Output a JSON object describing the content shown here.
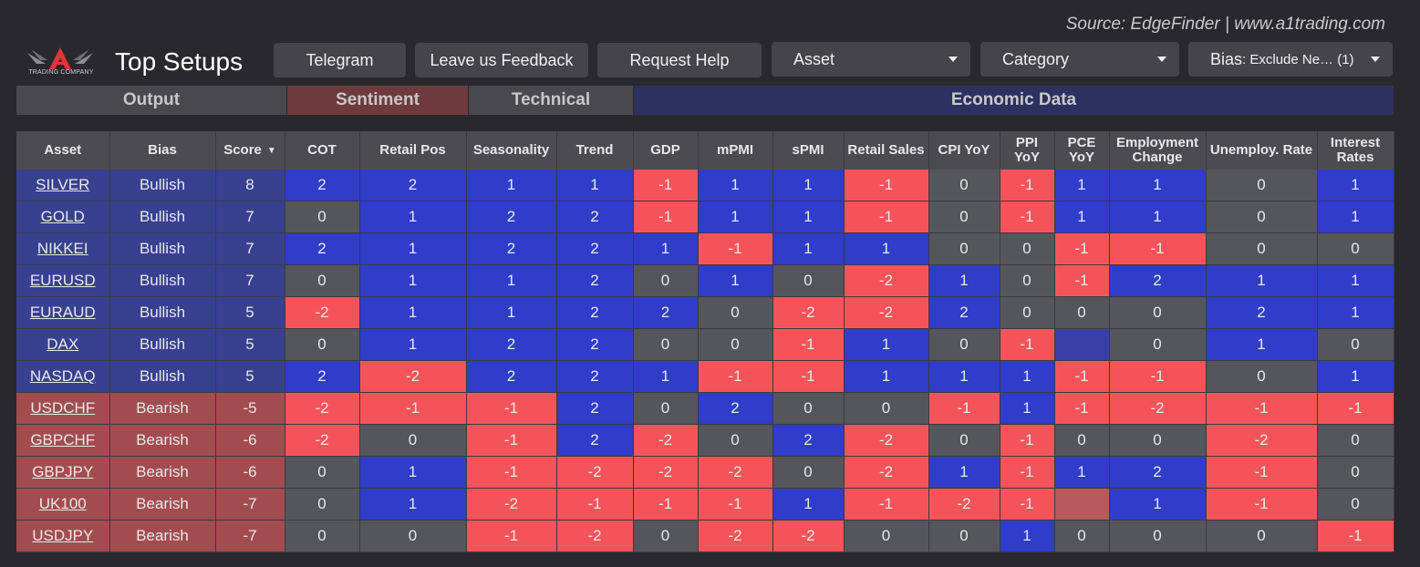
{
  "source": "Source: EdgeFinder | www.a1trading.com",
  "logo_text": "TRADING COMPANY",
  "title": "Top Setups",
  "buttons": {
    "telegram": "Telegram",
    "feedback": "Leave us Feedback",
    "help": "Request Help"
  },
  "filters": {
    "asset": "Asset",
    "category": "Category",
    "bias_label": "Bias",
    "bias_value": ": Exclude Ne… (1)"
  },
  "groups": {
    "output": "Output",
    "sentiment": "Sentiment",
    "technical": "Technical",
    "economic": "Economic Data"
  },
  "colors": {
    "bullish": "#2f3dc8",
    "bearish": "#f45459",
    "neutral": "#55565b"
  },
  "columns": [
    "Asset",
    "Bias",
    "Score",
    "COT",
    "Retail Pos",
    "Seasonality",
    "Trend",
    "GDP",
    "mPMI",
    "sPMI",
    "Retail Sales",
    "CPI YoY",
    "PPI YoY",
    "PCE YoY",
    "Employment Change",
    "Unemploy. Rate",
    "Interest Rates"
  ],
  "rows": [
    {
      "asset": "SILVER",
      "bias": "Bullish",
      "score": "8",
      "vals": [
        "2",
        "2",
        "1",
        "1",
        "-1",
        "1",
        "1",
        "-1",
        "0",
        "-1",
        "1",
        "1",
        "0",
        "1"
      ],
      "colors": [
        "b",
        "b",
        "b",
        "b",
        "r",
        "b",
        "b",
        "r",
        "g",
        "r",
        "b",
        "b",
        "g",
        "b"
      ]
    },
    {
      "asset": "GOLD",
      "bias": "Bullish",
      "score": "7",
      "vals": [
        "0",
        "1",
        "2",
        "2",
        "-1",
        "1",
        "1",
        "-1",
        "0",
        "-1",
        "1",
        "1",
        "0",
        "1"
      ],
      "colors": [
        "g",
        "b",
        "b",
        "b",
        "r",
        "b",
        "b",
        "r",
        "g",
        "r",
        "b",
        "b",
        "g",
        "b"
      ]
    },
    {
      "asset": "NIKKEI",
      "bias": "Bullish",
      "score": "7",
      "vals": [
        "2",
        "1",
        "2",
        "2",
        "1",
        "-1",
        "1",
        "1",
        "0",
        "0",
        "-1",
        "-1",
        "0",
        "0"
      ],
      "colors": [
        "b",
        "b",
        "b",
        "b",
        "b",
        "r",
        "b",
        "b",
        "g",
        "g",
        "r",
        "r",
        "g",
        "g"
      ]
    },
    {
      "asset": "EURUSD",
      "bias": "Bullish",
      "score": "7",
      "vals": [
        "0",
        "1",
        "1",
        "2",
        "0",
        "1",
        "0",
        "-2",
        "1",
        "0",
        "-1",
        "2",
        "1",
        "1"
      ],
      "colors": [
        "g",
        "b",
        "b",
        "b",
        "g",
        "b",
        "g",
        "r",
        "b",
        "g",
        "r",
        "b",
        "b",
        "b"
      ]
    },
    {
      "asset": "EURAUD",
      "bias": "Bullish",
      "score": "5",
      "vals": [
        "-2",
        "1",
        "1",
        "2",
        "2",
        "0",
        "-2",
        "-2",
        "2",
        "0",
        "0",
        "0",
        "2",
        "1"
      ],
      "colors": [
        "r",
        "b",
        "b",
        "b",
        "b",
        "g",
        "r",
        "r",
        "b",
        "g",
        "g",
        "g",
        "b",
        "b"
      ]
    },
    {
      "asset": "DAX",
      "bias": "Bullish",
      "score": "5",
      "vals": [
        "0",
        "1",
        "2",
        "2",
        "0",
        "0",
        "-1",
        "1",
        "0",
        "-1",
        "",
        "0",
        "1",
        "0"
      ],
      "colors": [
        "g",
        "b",
        "b",
        "b",
        "g",
        "g",
        "r",
        "b",
        "g",
        "r",
        "lb",
        "g",
        "b",
        "g"
      ]
    },
    {
      "asset": "NASDAQ",
      "bias": "Bullish",
      "score": "5",
      "vals": [
        "2",
        "-2",
        "2",
        "2",
        "1",
        "-1",
        "-1",
        "1",
        "1",
        "1",
        "-1",
        "-1",
        "0",
        "1"
      ],
      "colors": [
        "b",
        "r",
        "b",
        "b",
        "b",
        "r",
        "r",
        "b",
        "b",
        "b",
        "r",
        "r",
        "g",
        "b"
      ]
    },
    {
      "asset": "USDCHF",
      "bias": "Bearish",
      "score": "-5",
      "vals": [
        "-2",
        "-1",
        "-1",
        "2",
        "0",
        "2",
        "0",
        "0",
        "-1",
        "1",
        "-1",
        "-2",
        "-1",
        "-1"
      ],
      "colors": [
        "r",
        "r",
        "r",
        "b",
        "g",
        "b",
        "g",
        "g",
        "r",
        "b",
        "r",
        "r",
        "r",
        "r"
      ]
    },
    {
      "asset": "GBPCHF",
      "bias": "Bearish",
      "score": "-6",
      "vals": [
        "-2",
        "0",
        "-1",
        "2",
        "-2",
        "0",
        "2",
        "-2",
        "0",
        "-1",
        "0",
        "0",
        "-2",
        "0"
      ],
      "colors": [
        "r",
        "g",
        "r",
        "b",
        "r",
        "g",
        "b",
        "r",
        "g",
        "r",
        "g",
        "g",
        "r",
        "g"
      ]
    },
    {
      "asset": "GBPJPY",
      "bias": "Bearish",
      "score": "-6",
      "vals": [
        "0",
        "1",
        "-1",
        "-2",
        "-2",
        "-2",
        "0",
        "-2",
        "1",
        "-1",
        "1",
        "2",
        "-1",
        "0"
      ],
      "colors": [
        "g",
        "b",
        "r",
        "r",
        "r",
        "r",
        "g",
        "r",
        "b",
        "r",
        "b",
        "b",
        "r",
        "g"
      ]
    },
    {
      "asset": "UK100",
      "bias": "Bearish",
      "score": "-7",
      "vals": [
        "0",
        "1",
        "-2",
        "-1",
        "-1",
        "-1",
        "1",
        "-1",
        "-2",
        "-1",
        "",
        "1",
        "-1",
        "0"
      ],
      "colors": [
        "g",
        "b",
        "r",
        "r",
        "r",
        "r",
        "b",
        "r",
        "r",
        "r",
        "lr",
        "b",
        "r",
        "g"
      ]
    },
    {
      "asset": "USDJPY",
      "bias": "Bearish",
      "score": "-7",
      "vals": [
        "0",
        "0",
        "-1",
        "-2",
        "0",
        "-2",
        "-2",
        "0",
        "0",
        "1",
        "0",
        "0",
        "0",
        "-1"
      ],
      "colors": [
        "g",
        "g",
        "r",
        "r",
        "g",
        "r",
        "r",
        "g",
        "g",
        "b",
        "g",
        "g",
        "g",
        "r"
      ]
    }
  ]
}
